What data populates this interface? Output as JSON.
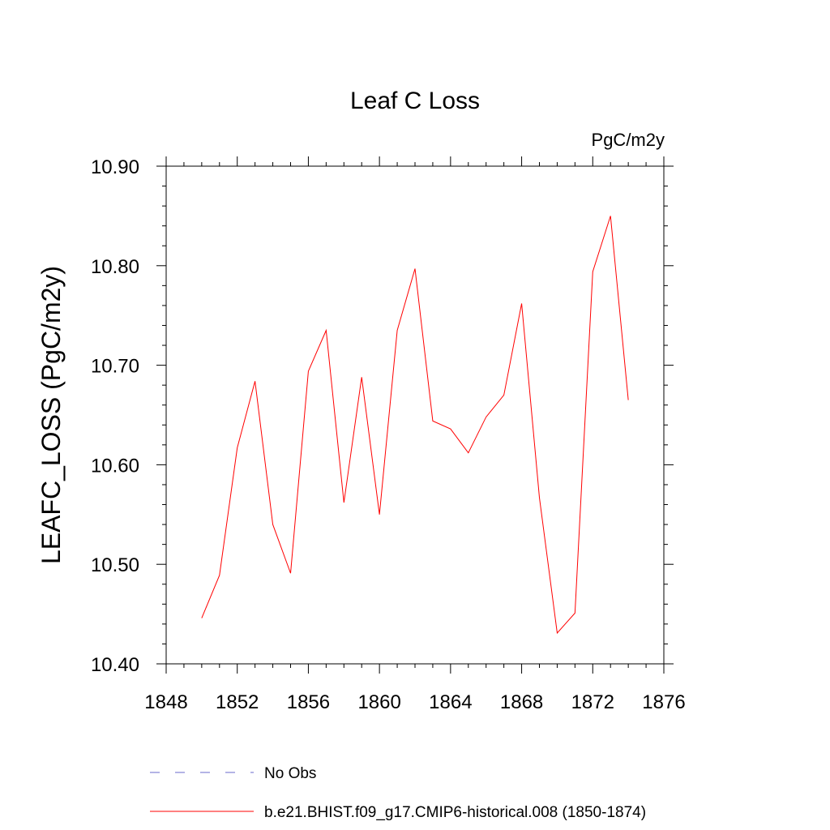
{
  "chart_data": {
    "type": "line",
    "title": "Leaf C Loss",
    "units": "PgC/m2y",
    "ylabel": "LEAFC_LOSS  (PgC/m2y)",
    "xlabel": "",
    "xlim": [
      1848,
      1876
    ],
    "ylim": [
      10.4,
      10.9
    ],
    "x_ticks": [
      1848,
      1852,
      1856,
      1860,
      1864,
      1868,
      1872,
      1876
    ],
    "x_tick_labels": [
      "1848",
      "1852",
      "1856",
      "1860",
      "1864",
      "1868",
      "1872",
      "1876"
    ],
    "y_ticks": [
      10.4,
      10.5,
      10.6,
      10.7,
      10.8,
      10.9
    ],
    "y_tick_labels": [
      "10.40",
      "10.50",
      "10.60",
      "10.70",
      "10.80",
      "10.90"
    ],
    "series": [
      {
        "name": "b.e21.BHIST.f09_g17.CMIP6-historical.008 (1850-1874)",
        "color": "#ff0000",
        "style": "solid",
        "x": [
          1850,
          1851,
          1852,
          1853,
          1854,
          1855,
          1856,
          1857,
          1858,
          1859,
          1860,
          1861,
          1862,
          1863,
          1864,
          1865,
          1866,
          1867,
          1868,
          1869,
          1870,
          1871,
          1872,
          1873,
          1874
        ],
        "values": [
          10.446,
          10.489,
          10.617,
          10.684,
          10.54,
          10.491,
          10.694,
          10.735,
          10.562,
          10.688,
          10.55,
          10.735,
          10.797,
          10.644,
          10.636,
          10.612,
          10.648,
          10.67,
          10.762,
          10.567,
          10.431,
          10.451,
          10.794,
          10.85,
          10.665
        ]
      }
    ],
    "legend": {
      "position": "bottom",
      "entries": [
        {
          "label": "No Obs",
          "color": "#6a6acd",
          "style": "dashed"
        },
        {
          "label": "b.e21.BHIST.f09_g17.CMIP6-historical.008 (1850-1874)",
          "color": "#ff0000",
          "style": "solid"
        }
      ]
    }
  }
}
